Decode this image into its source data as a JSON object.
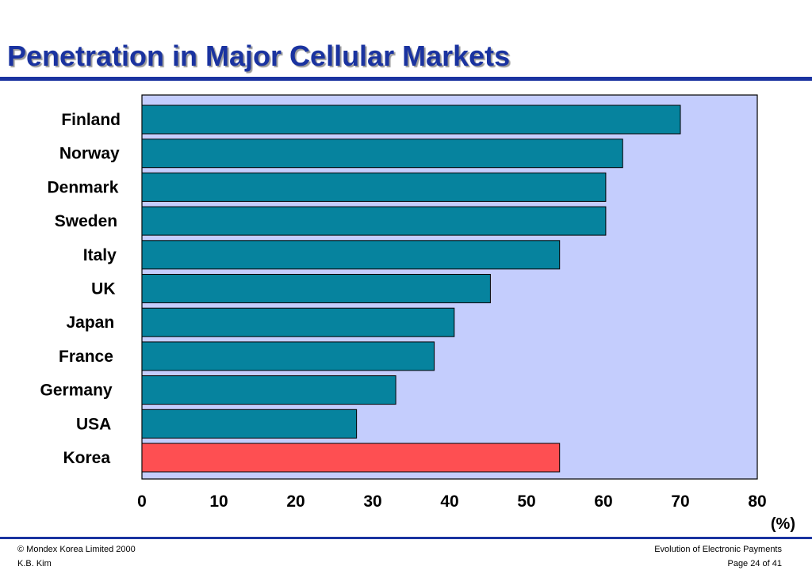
{
  "page": {
    "title": "Penetration in Major Cellular Markets",
    "footer": {
      "left_line1": "© Mondex Korea Limited 2000",
      "left_line2": "K.B. Kim",
      "right_line1": "Evolution of Electronic Payments",
      "right_line2": "Page 24 of 41"
    }
  },
  "chart_data": {
    "type": "bar",
    "orientation": "horizontal",
    "categories": [
      "Finland",
      "Norway",
      "Denmark",
      "Sweden",
      "Italy",
      "UK",
      "Japan",
      "France",
      "Germany",
      "USA",
      "Korea"
    ],
    "values": [
      70,
      62.5,
      60.3,
      60.3,
      54.3,
      45.3,
      40.6,
      38,
      33,
      27.9,
      54.3
    ],
    "highlight": "Korea",
    "unit_label": "(%)",
    "xlim": [
      0,
      80
    ],
    "x_ticks": [
      0,
      10,
      20,
      30,
      40,
      50,
      60,
      70,
      80
    ],
    "grid": false,
    "colors": {
      "bar": "#06839e",
      "highlight_bar": "#fe4f52",
      "plot_background": "#c4cdfd",
      "title": "#1a33a0"
    }
  }
}
